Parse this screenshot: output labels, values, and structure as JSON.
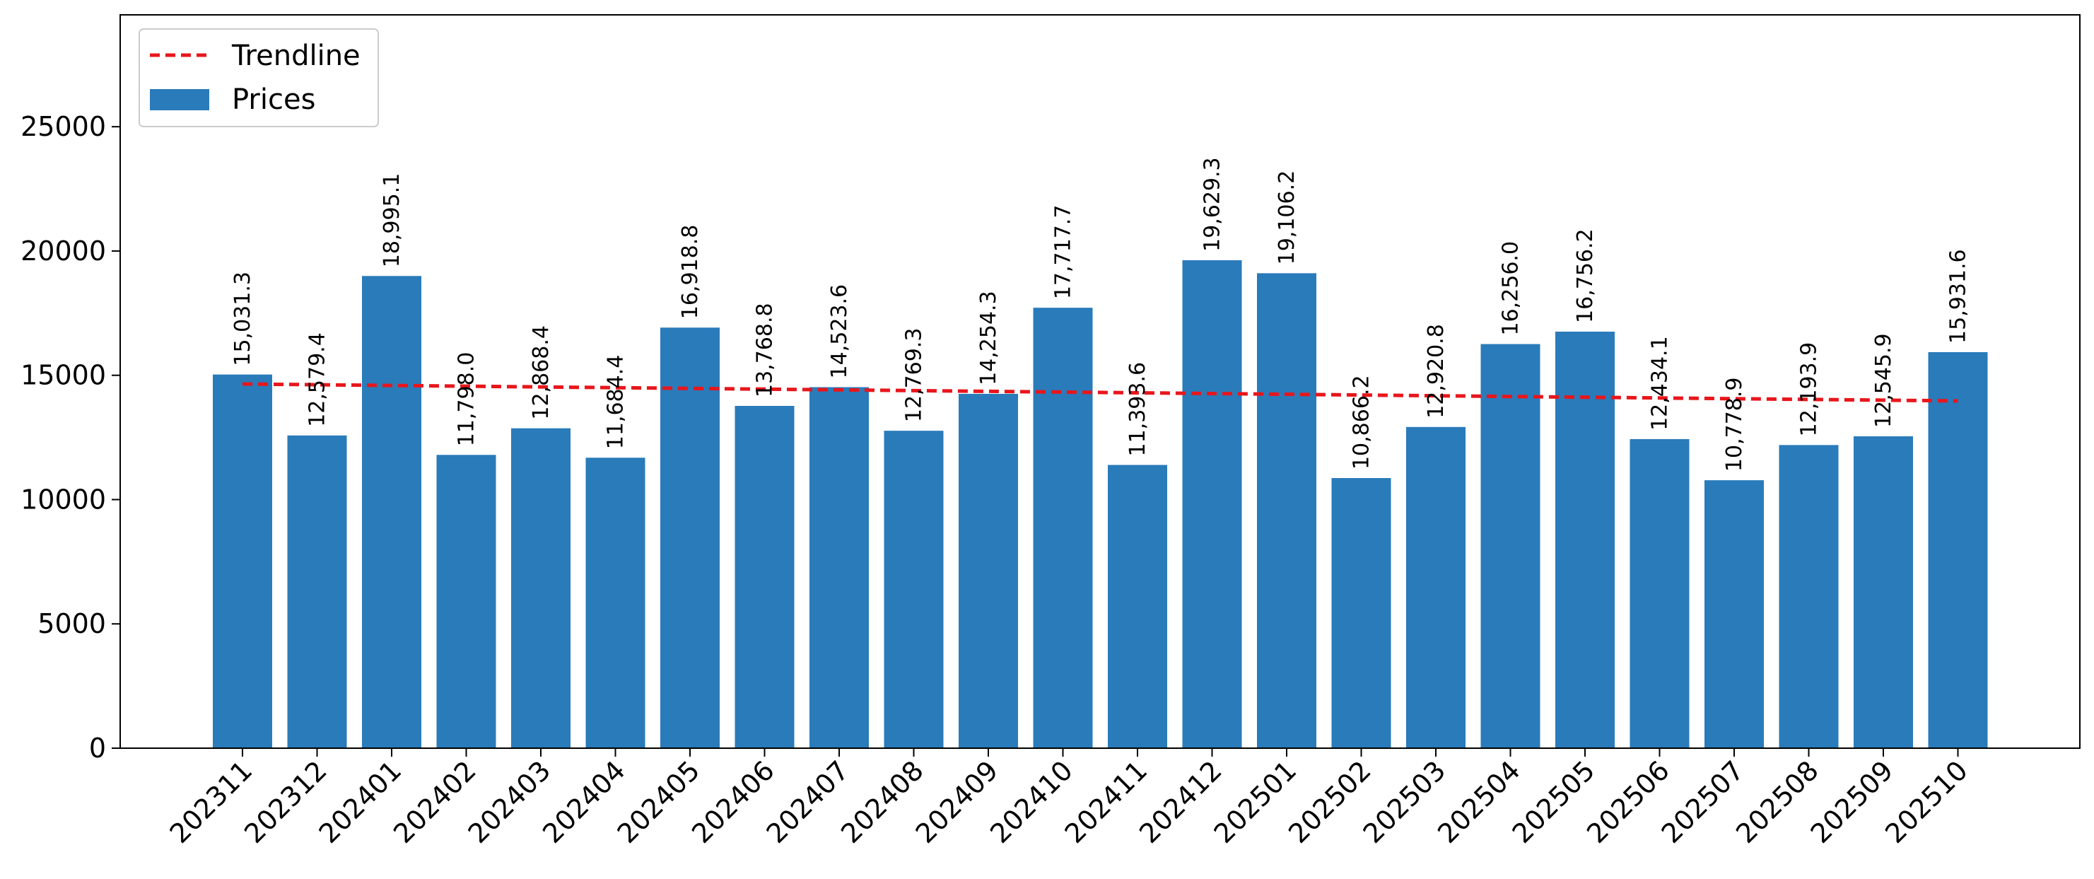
{
  "chart_data": {
    "type": "bar",
    "title": "",
    "xlabel": "",
    "ylabel": "",
    "ylim": [
      0,
      29500
    ],
    "yticks": [
      0,
      5000,
      10000,
      15000,
      20000,
      25000
    ],
    "ytick_labels": [
      "0",
      "5000",
      "10000",
      "15000",
      "20000",
      "25000"
    ],
    "grid": false,
    "legend_position": "top-left",
    "categories": [
      "202311",
      "202312",
      "202401",
      "202402",
      "202403",
      "202404",
      "202405",
      "202406",
      "202407",
      "202408",
      "202409",
      "202410",
      "202411",
      "202412",
      "202501",
      "202502",
      "202503",
      "202504",
      "202505",
      "202506",
      "202507",
      "202508",
      "202509",
      "202510"
    ],
    "series": [
      {
        "name": "Prices",
        "kind": "bar",
        "color": "#2a7bba",
        "values": [
          15031.3,
          12579.4,
          18995.1,
          11798.0,
          12868.4,
          11684.4,
          16918.8,
          13768.8,
          14523.6,
          12769.3,
          14254.3,
          17717.7,
          11393.6,
          19629.3,
          19106.2,
          10866.2,
          12920.8,
          16256.0,
          16756.2,
          12434.1,
          10778.9,
          12193.9,
          12545.9,
          15931.6
        ],
        "labels": [
          "15,031.3",
          "12,579.4",
          "18,995.1",
          "11,798.0",
          "12,868.4",
          "11,684.4",
          "16,918.8",
          "13,768.8",
          "14,523.6",
          "12,769.3",
          "14,254.3",
          "17,717.7",
          "11,393.6",
          "19,629.3",
          "19,106.2",
          "10,866.2",
          "12,920.8",
          "16,256.0",
          "16,756.2",
          "12,434.1",
          "10,778.9",
          "12,193.9",
          "12,545.9",
          "15,931.6"
        ]
      },
      {
        "name": "Trendline",
        "kind": "line",
        "style": "dashed",
        "color": "#e8161b",
        "start": 14650,
        "end": 13970
      }
    ]
  }
}
